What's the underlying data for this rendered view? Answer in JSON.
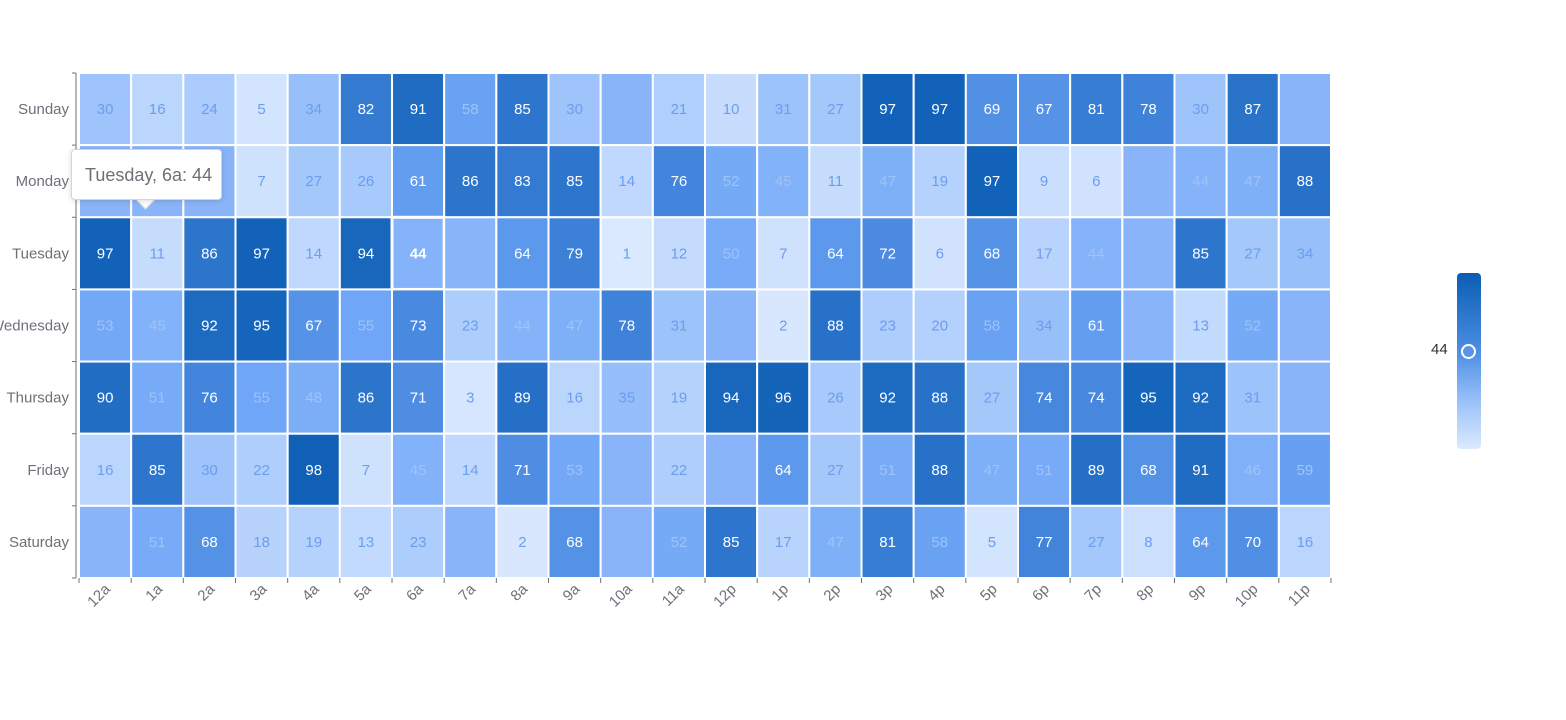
{
  "chart_data": {
    "type": "heatmap",
    "x_categories": [
      "12a",
      "1a",
      "2a",
      "3a",
      "4a",
      "5a",
      "6a",
      "7a",
      "8a",
      "9a",
      "10a",
      "11a",
      "12p",
      "1p",
      "2p",
      "3p",
      "4p",
      "5p",
      "6p",
      "7p",
      "8p",
      "9p",
      "10p",
      "11p"
    ],
    "y_categories": [
      "Sunday",
      "Monday",
      "Tuesday",
      "Wednesday",
      "Thursday",
      "Friday",
      "Saturday"
    ],
    "values": [
      [
        30,
        16,
        24,
        5,
        34,
        82,
        91,
        58,
        85,
        30,
        null,
        21,
        10,
        31,
        27,
        97,
        97,
        69,
        67,
        81,
        78,
        30,
        87,
        null
      ],
      [
        null,
        null,
        null,
        7,
        27,
        26,
        61,
        86,
        83,
        85,
        14,
        76,
        52,
        45,
        11,
        47,
        19,
        97,
        9,
        6,
        null,
        44,
        47,
        88
      ],
      [
        97,
        11,
        86,
        97,
        14,
        94,
        44,
        null,
        64,
        79,
        1,
        12,
        50,
        7,
        64,
        72,
        6,
        68,
        17,
        44,
        null,
        85,
        27,
        34
      ],
      [
        53,
        45,
        92,
        95,
        67,
        55,
        73,
        23,
        44,
        47,
        78,
        31,
        null,
        2,
        88,
        23,
        20,
        58,
        34,
        61,
        null,
        13,
        52,
        null
      ],
      [
        90,
        51,
        76,
        55,
        48,
        86,
        71,
        3,
        89,
        16,
        35,
        19,
        94,
        96,
        26,
        92,
        88,
        27,
        74,
        74,
        95,
        92,
        31,
        null
      ],
      [
        16,
        85,
        30,
        22,
        98,
        7,
        45,
        14,
        71,
        53,
        null,
        22,
        null,
        64,
        27,
        51,
        88,
        47,
        51,
        89,
        68,
        91,
        46,
        59
      ],
      [
        null,
        51,
        68,
        18,
        19,
        13,
        23,
        null,
        2,
        68,
        null,
        52,
        85,
        17,
        47,
        81,
        58,
        5,
        77,
        27,
        8,
        64,
        70,
        16
      ]
    ],
    "highlight": {
      "row": 2,
      "col": 6,
      "value": 44
    },
    "visual_map": {
      "min": 0,
      "max": 100,
      "current": 44,
      "color_low": "#dceafe",
      "color_high": "#0a5db3"
    }
  },
  "tooltip": {
    "text": "Tuesday, 6a: 44"
  },
  "visual_map_label": "44"
}
